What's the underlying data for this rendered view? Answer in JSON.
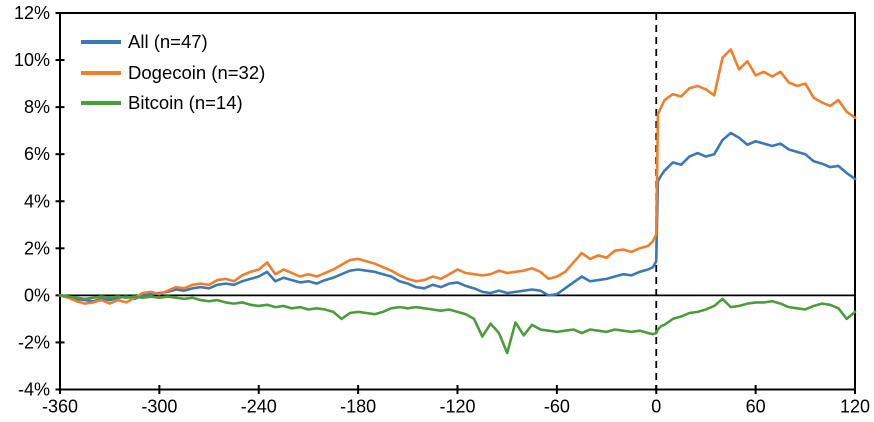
{
  "figure": {
    "background": "#ffffff",
    "axis_color": "#000000",
    "text_color": "#000000"
  },
  "chart_data": {
    "type": "line",
    "title": "",
    "xlabel": "",
    "ylabel": "",
    "xlim": [
      -360,
      120
    ],
    "ylim": [
      -4,
      12
    ],
    "grid": false,
    "frame": "full-box",
    "zero_line": true,
    "event_line_x": 0,
    "event_line_style": "dashed",
    "legend_position": "top-left-inside",
    "x_ticks": [
      -360,
      -300,
      -240,
      -180,
      -120,
      -60,
      0,
      60,
      120
    ],
    "x_tick_labels": [
      "-360",
      "-300",
      "-240",
      "-180",
      "-120",
      "-60",
      "0",
      "60",
      "120"
    ],
    "y_ticks": [
      12,
      10,
      8,
      6,
      4,
      2,
      0,
      -2,
      -4
    ],
    "y_tick_labels": [
      "12%",
      "10%",
      "8%",
      "6%",
      "4%",
      "2%",
      "0%",
      "-2%",
      "-4%"
    ],
    "x": [
      -360,
      -355,
      -350,
      -345,
      -340,
      -335,
      -330,
      -325,
      -320,
      -315,
      -310,
      -305,
      -300,
      -295,
      -290,
      -285,
      -280,
      -275,
      -270,
      -265,
      -260,
      -255,
      -250,
      -245,
      -240,
      -235,
      -230,
      -225,
      -220,
      -215,
      -210,
      -205,
      -200,
      -195,
      -190,
      -185,
      -180,
      -175,
      -170,
      -165,
      -160,
      -155,
      -150,
      -145,
      -140,
      -135,
      -130,
      -125,
      -120,
      -115,
      -110,
      -105,
      -100,
      -95,
      -90,
      -85,
      -80,
      -75,
      -70,
      -65,
      -60,
      -55,
      -50,
      -45,
      -40,
      -35,
      -30,
      -25,
      -20,
      -15,
      -10,
      -5,
      -2,
      0,
      1,
      3,
      5,
      10,
      15,
      20,
      25,
      30,
      35,
      40,
      45,
      50,
      55,
      60,
      65,
      70,
      75,
      80,
      85,
      90,
      95,
      100,
      105,
      110,
      115,
      120
    ],
    "series": [
      {
        "name": "All",
        "legend": "All (n=47)",
        "color": "#3B78B5",
        "values": [
          0,
          -0.05,
          -0.15,
          -0.2,
          -0.25,
          -0.15,
          -0.2,
          -0.1,
          -0.05,
          -0.15,
          0,
          0.05,
          0.1,
          0.15,
          0.25,
          0.2,
          0.3,
          0.35,
          0.3,
          0.45,
          0.5,
          0.45,
          0.6,
          0.7,
          0.8,
          1.0,
          0.6,
          0.75,
          0.65,
          0.55,
          0.6,
          0.5,
          0.65,
          0.75,
          0.9,
          1.05,
          1.1,
          1.05,
          1.0,
          0.9,
          0.8,
          0.6,
          0.5,
          0.35,
          0.3,
          0.45,
          0.35,
          0.5,
          0.55,
          0.4,
          0.3,
          0.15,
          0.1,
          0.2,
          0.1,
          0.15,
          0.2,
          0.25,
          0.2,
          0.0,
          0.05,
          0.3,
          0.55,
          0.8,
          0.6,
          0.65,
          0.7,
          0.8,
          0.9,
          0.85,
          1.0,
          1.1,
          1.2,
          1.45,
          4.85,
          5.1,
          5.3,
          5.65,
          5.55,
          5.9,
          6.05,
          5.9,
          6.0,
          6.6,
          6.9,
          6.7,
          6.4,
          6.55,
          6.45,
          6.35,
          6.45,
          6.2,
          6.1,
          6.0,
          5.7,
          5.6,
          5.45,
          5.5,
          5.2,
          4.95
        ]
      },
      {
        "name": "Dogecoin",
        "legend": "Dogecoin (n=32)",
        "color": "#F07F2D",
        "values": [
          0,
          -0.1,
          -0.25,
          -0.35,
          -0.3,
          -0.2,
          -0.35,
          -0.2,
          -0.3,
          -0.1,
          0.1,
          0.15,
          0.05,
          0.2,
          0.35,
          0.3,
          0.45,
          0.5,
          0.45,
          0.65,
          0.7,
          0.6,
          0.85,
          1.0,
          1.1,
          1.4,
          0.9,
          1.1,
          0.95,
          0.8,
          0.9,
          0.8,
          0.95,
          1.1,
          1.3,
          1.5,
          1.55,
          1.45,
          1.35,
          1.2,
          1.05,
          0.85,
          0.7,
          0.6,
          0.65,
          0.8,
          0.7,
          0.9,
          1.1,
          0.95,
          0.9,
          0.85,
          0.9,
          1.05,
          0.95,
          1.0,
          1.05,
          1.15,
          1.0,
          0.7,
          0.8,
          1.0,
          1.4,
          1.8,
          1.55,
          1.7,
          1.6,
          1.9,
          1.95,
          1.85,
          2.0,
          2.1,
          2.3,
          2.6,
          7.7,
          8.0,
          8.3,
          8.55,
          8.45,
          8.8,
          8.9,
          8.75,
          8.5,
          10.1,
          10.45,
          9.6,
          9.95,
          9.35,
          9.5,
          9.3,
          9.5,
          9.05,
          8.9,
          9.0,
          8.4,
          8.2,
          8.05,
          8.3,
          7.8,
          7.55
        ]
      },
      {
        "name": "Bitcoin",
        "legend": "Bitcoin (n=14)",
        "color": "#4D9C3C",
        "values": [
          0,
          -0.05,
          -0.1,
          -0.15,
          -0.1,
          -0.05,
          -0.1,
          -0.05,
          -0.1,
          -0.05,
          -0.1,
          -0.05,
          -0.1,
          -0.05,
          -0.1,
          -0.15,
          -0.1,
          -0.2,
          -0.25,
          -0.2,
          -0.3,
          -0.35,
          -0.3,
          -0.4,
          -0.45,
          -0.4,
          -0.5,
          -0.45,
          -0.55,
          -0.5,
          -0.6,
          -0.55,
          -0.6,
          -0.7,
          -1.0,
          -0.75,
          -0.7,
          -0.75,
          -0.8,
          -0.7,
          -0.55,
          -0.5,
          -0.55,
          -0.5,
          -0.55,
          -0.6,
          -0.65,
          -0.6,
          -0.7,
          -0.8,
          -1.0,
          -1.75,
          -1.2,
          -1.6,
          -2.45,
          -1.15,
          -1.7,
          -1.25,
          -1.45,
          -1.5,
          -1.55,
          -1.5,
          -1.45,
          -1.6,
          -1.45,
          -1.5,
          -1.55,
          -1.45,
          -1.5,
          -1.55,
          -1.5,
          -1.6,
          -1.65,
          -1.6,
          -1.45,
          -1.3,
          -1.25,
          -1.0,
          -0.9,
          -0.75,
          -0.7,
          -0.6,
          -0.45,
          -0.15,
          -0.5,
          -0.45,
          -0.35,
          -0.3,
          -0.3,
          -0.25,
          -0.35,
          -0.5,
          -0.55,
          -0.6,
          -0.45,
          -0.35,
          -0.4,
          -0.55,
          -1.0,
          -0.7
        ]
      }
    ]
  }
}
